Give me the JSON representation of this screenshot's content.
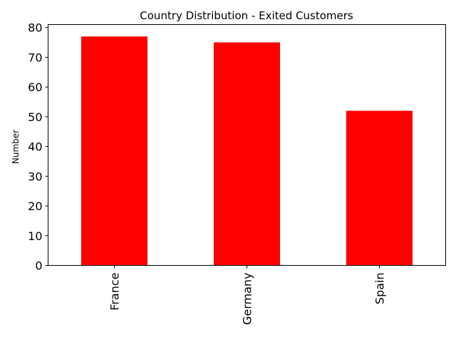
{
  "chart_data": {
    "type": "bar",
    "title": "Country Distribution - Exited Customers",
    "xlabel": "",
    "ylabel": "Number",
    "categories": [
      "France",
      "Germany",
      "Spain"
    ],
    "values": [
      77,
      75,
      52
    ],
    "ylim": [
      0,
      81
    ],
    "yticks": [
      0,
      10,
      20,
      30,
      40,
      50,
      60,
      70,
      80
    ],
    "bar_color": "#ff0000",
    "grid": false,
    "legend": "none"
  }
}
